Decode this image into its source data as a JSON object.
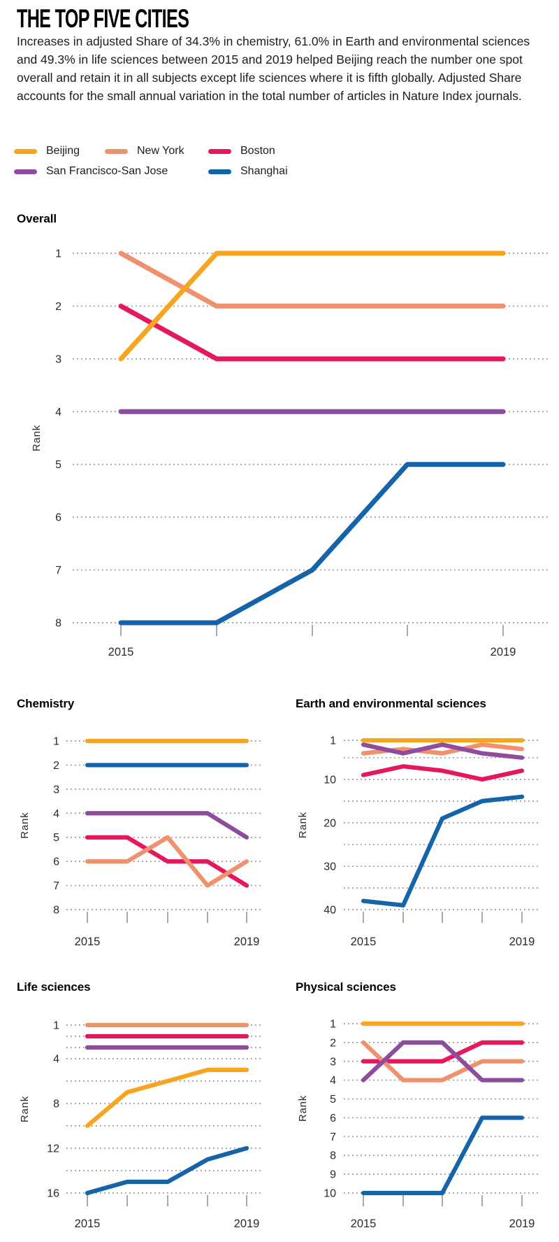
{
  "header": {
    "title": "THE TOP FIVE CITIES",
    "description": "Increases in adjusted Share of 34.3% in chemistry, 61.0% in Earth and environmental sciences and 49.3% in life sciences between 2015 and 2019 helped Beijing reach the number one spot overall and retain it in all subjects except life sciences where it is fifth globally. Adjusted Share accounts for the small annual variation in the total number of articles in Nature Index journals."
  },
  "legend": {
    "rows": [
      [
        {
          "label": "Beijing",
          "color": "#F7A51E"
        },
        {
          "label": "New York",
          "color": "#F0916E"
        },
        {
          "label": "Boston",
          "color": "#E4175F"
        }
      ],
      [
        {
          "label": "San Francisco-San Jose",
          "color": "#8E4C9E"
        },
        {
          "label": "Shanghai",
          "color": "#1563A8"
        }
      ]
    ]
  },
  "chart_data": [
    {
      "id": "overall",
      "type": "line",
      "title": "Overall",
      "ylabel": "Rank",
      "x": [
        2015,
        2016,
        2017,
        2018,
        2019
      ],
      "x_tick_labels": [
        "2015",
        "",
        "",
        "",
        "2019"
      ],
      "ylim": [
        1,
        8
      ],
      "grid_ranks": [
        1,
        2,
        3,
        4,
        5,
        6,
        7,
        8
      ],
      "label_ranks": [
        1,
        2,
        3,
        4,
        5,
        6,
        7,
        8
      ],
      "grid": true,
      "series": [
        {
          "name": "Boston",
          "values": [
            2,
            3,
            3,
            3,
            3
          ]
        },
        {
          "name": "New York",
          "values": [
            1,
            2,
            2,
            2,
            2
          ]
        },
        {
          "name": "San Francisco-San Jose",
          "values": [
            4,
            4,
            4,
            4,
            4
          ]
        },
        {
          "name": "Shanghai",
          "values": [
            8,
            8,
            7,
            5,
            5
          ]
        },
        {
          "name": "Beijing",
          "values": [
            3,
            1,
            1,
            1,
            1
          ]
        }
      ]
    },
    {
      "id": "chemistry",
      "type": "line",
      "title": "Chemistry",
      "ylabel": "Rank",
      "x": [
        2015,
        2016,
        2017,
        2018,
        2019
      ],
      "x_tick_labels": [
        "2015",
        "",
        "",
        "",
        "2019"
      ],
      "ylim": [
        1,
        8
      ],
      "grid_ranks": [
        1,
        2,
        3,
        4,
        5,
        6,
        7,
        8
      ],
      "label_ranks": [
        1,
        2,
        3,
        4,
        5,
        6,
        7,
        8
      ],
      "grid": true,
      "series": [
        {
          "name": "Boston",
          "values": [
            5,
            5,
            6,
            6,
            7
          ]
        },
        {
          "name": "New York",
          "values": [
            6,
            6,
            5,
            7,
            6
          ]
        },
        {
          "name": "San Francisco-San Jose",
          "values": [
            4,
            4,
            4,
            4,
            5
          ]
        },
        {
          "name": "Shanghai",
          "values": [
            2,
            2,
            2,
            2,
            2
          ]
        },
        {
          "name": "Beijing",
          "values": [
            1,
            1,
            1,
            1,
            1
          ]
        }
      ]
    },
    {
      "id": "earth",
      "type": "line",
      "title": "Earth and environmental sciences",
      "ylabel": "Rank",
      "x": [
        2015,
        2016,
        2017,
        2018,
        2019
      ],
      "x_tick_labels": [
        "2015",
        "",
        "",
        "",
        "2019"
      ],
      "ylim": [
        1,
        40
      ],
      "grid_ranks": [
        1,
        5,
        10,
        15,
        20,
        25,
        30,
        35,
        40
      ],
      "label_ranks": [
        1,
        10,
        20,
        30,
        40
      ],
      "grid": true,
      "series": [
        {
          "name": "Boston",
          "values": [
            9,
            7,
            8,
            10,
            8
          ]
        },
        {
          "name": "New York",
          "values": [
            4,
            3,
            4,
            2,
            3
          ]
        },
        {
          "name": "San Francisco-San Jose",
          "values": [
            2,
            4,
            2,
            4,
            5
          ]
        },
        {
          "name": "Shanghai",
          "values": [
            38,
            39,
            19,
            15,
            14
          ]
        },
        {
          "name": "Beijing",
          "values": [
            1,
            1,
            1,
            1,
            1
          ]
        }
      ]
    },
    {
      "id": "life",
      "type": "line",
      "title": "Life sciences",
      "ylabel": "Rank",
      "x": [
        2015,
        2016,
        2017,
        2018,
        2019
      ],
      "x_tick_labels": [
        "2015",
        "",
        "",
        "",
        "2019"
      ],
      "ylim": [
        1,
        16
      ],
      "grid_ranks": [
        1,
        2,
        3,
        4,
        6,
        8,
        10,
        12,
        14,
        16
      ],
      "label_ranks": [
        1,
        4,
        8,
        12,
        16
      ],
      "grid": true,
      "series": [
        {
          "name": "Boston",
          "values": [
            2,
            2,
            2,
            2,
            2
          ]
        },
        {
          "name": "New York",
          "values": [
            1,
            1,
            1,
            1,
            1
          ]
        },
        {
          "name": "San Francisco-San Jose",
          "values": [
            3,
            3,
            3,
            3,
            3
          ]
        },
        {
          "name": "Shanghai",
          "values": [
            16,
            15,
            15,
            13,
            12
          ]
        },
        {
          "name": "Beijing",
          "values": [
            10,
            7,
            6,
            5,
            5
          ]
        }
      ]
    },
    {
      "id": "physical",
      "type": "line",
      "title": "Physical sciences",
      "ylabel": "Rank",
      "x": [
        2015,
        2016,
        2017,
        2018,
        2019
      ],
      "x_tick_labels": [
        "2015",
        "",
        "",
        "",
        "2019"
      ],
      "ylim": [
        1,
        10
      ],
      "grid_ranks": [
        1,
        2,
        3,
        4,
        5,
        6,
        7,
        8,
        9,
        10
      ],
      "label_ranks": [
        1,
        2,
        3,
        4,
        5,
        6,
        7,
        8,
        9,
        10
      ],
      "grid": true,
      "series": [
        {
          "name": "Boston",
          "values": [
            3,
            3,
            3,
            2,
            2
          ]
        },
        {
          "name": "New York",
          "values": [
            2,
            4,
            4,
            3,
            3
          ]
        },
        {
          "name": "San Francisco-San Jose",
          "values": [
            4,
            2,
            2,
            4,
            4
          ]
        },
        {
          "name": "Shanghai",
          "values": [
            10,
            10,
            10,
            6,
            6
          ]
        },
        {
          "name": "Beijing",
          "values": [
            1,
            1,
            1,
            1,
            1
          ]
        }
      ]
    }
  ],
  "style": {
    "grid_color": "#8d8d8d",
    "tick_color": "#9a9a9a",
    "text_color": "#2a2a2a"
  }
}
